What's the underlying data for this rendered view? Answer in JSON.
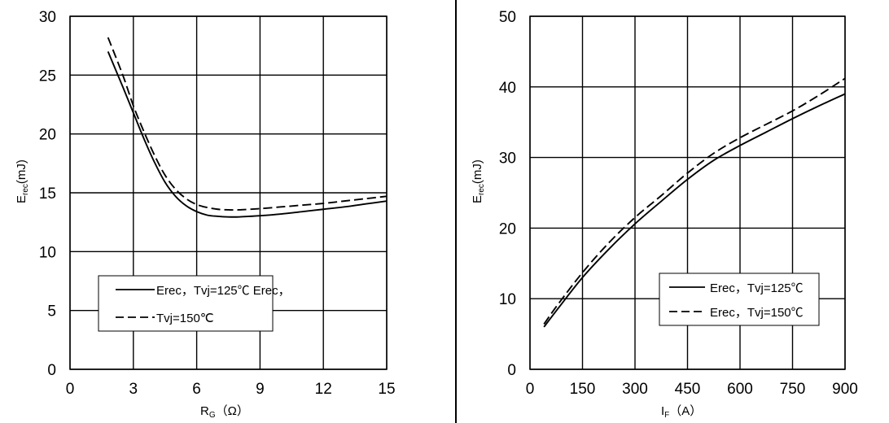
{
  "chart_data": [
    {
      "type": "line",
      "xlabel_main": "R",
      "xlabel_sub": "G",
      "xlabel_unit": "（Ω）",
      "ylabel_main": "E",
      "ylabel_sub": "rec",
      "ylabel_unit": "(mJ)",
      "xlim": [
        0,
        15
      ],
      "ylim": [
        0,
        30
      ],
      "xticks": [
        "0",
        "3",
        "6",
        "9",
        "12",
        "15"
      ],
      "yticks": [
        "0",
        "5",
        "10",
        "15",
        "20",
        "25",
        "30"
      ],
      "grid": true,
      "legend_position": "lower-left",
      "legend_lines": [
        "Erec，Tvj=125℃ Erec，",
        "Tvj=150℃"
      ],
      "series": [
        {
          "name": "Erec，Tvj=125℃",
          "style": "solid",
          "x": [
            1.8,
            2.5,
            3.0,
            3.5,
            4.0,
            4.5,
            5.0,
            5.5,
            6.0,
            6.5,
            7.0,
            7.5,
            8.0,
            8.5,
            9.0,
            10.0,
            11.0,
            12.0,
            13.0,
            14.0,
            15.0
          ],
          "y": [
            27.0,
            24.0,
            21.8,
            19.6,
            17.6,
            15.9,
            14.7,
            13.9,
            13.4,
            13.1,
            13.0,
            12.95,
            12.95,
            13.0,
            13.05,
            13.2,
            13.4,
            13.6,
            13.8,
            14.05,
            14.3
          ]
        },
        {
          "name": "Erec，Tvj=150℃",
          "style": "dashed",
          "x": [
            1.8,
            2.5,
            3.0,
            3.5,
            4.0,
            4.5,
            5.0,
            5.5,
            6.0,
            6.5,
            7.0,
            7.5,
            8.0,
            8.5,
            9.0,
            10.0,
            11.0,
            12.0,
            13.0,
            14.0,
            15.0
          ],
          "y": [
            28.2,
            25.0,
            22.4,
            20.2,
            18.2,
            16.5,
            15.3,
            14.5,
            14.0,
            13.75,
            13.6,
            13.55,
            13.55,
            13.6,
            13.65,
            13.8,
            13.95,
            14.1,
            14.3,
            14.5,
            14.7
          ]
        }
      ]
    },
    {
      "type": "line",
      "xlabel_main": "I",
      "xlabel_sub": "F",
      "xlabel_unit": "（A）",
      "ylabel_main": "E",
      "ylabel_sub": "rec",
      "ylabel_unit": "(mJ)",
      "xlim": [
        0,
        900
      ],
      "ylim": [
        0,
        50
      ],
      "xticks": [
        "0",
        "150",
        "300",
        "450",
        "600",
        "750",
        "900"
      ],
      "yticks": [
        "0",
        "10",
        "20",
        "30",
        "40",
        "50"
      ],
      "grid": true,
      "legend_position": "lower-right",
      "legend_lines": [
        "Erec，Tvj=125℃",
        "Erec，Tvj=150℃"
      ],
      "series": [
        {
          "name": "Erec，Tvj=125℃",
          "style": "solid",
          "x": [
            40,
            80,
            150,
            225,
            300,
            375,
            450,
            525,
            600,
            675,
            750,
            825,
            900
          ],
          "y": [
            6.0,
            8.6,
            13.0,
            17.0,
            20.6,
            23.8,
            26.9,
            29.6,
            31.7,
            33.6,
            35.5,
            37.3,
            39.0
          ],
          "clip_right": true
        },
        {
          "name": "Erec，Tvj=150℃",
          "style": "dashed",
          "x": [
            40,
            80,
            150,
            225,
            300,
            375,
            450,
            525,
            600,
            675,
            750,
            825,
            900
          ],
          "y": [
            6.4,
            9.2,
            13.7,
            17.9,
            21.5,
            24.6,
            27.8,
            30.6,
            32.8,
            34.7,
            36.6,
            38.8,
            41.2
          ],
          "clip_right": true
        }
      ]
    }
  ]
}
